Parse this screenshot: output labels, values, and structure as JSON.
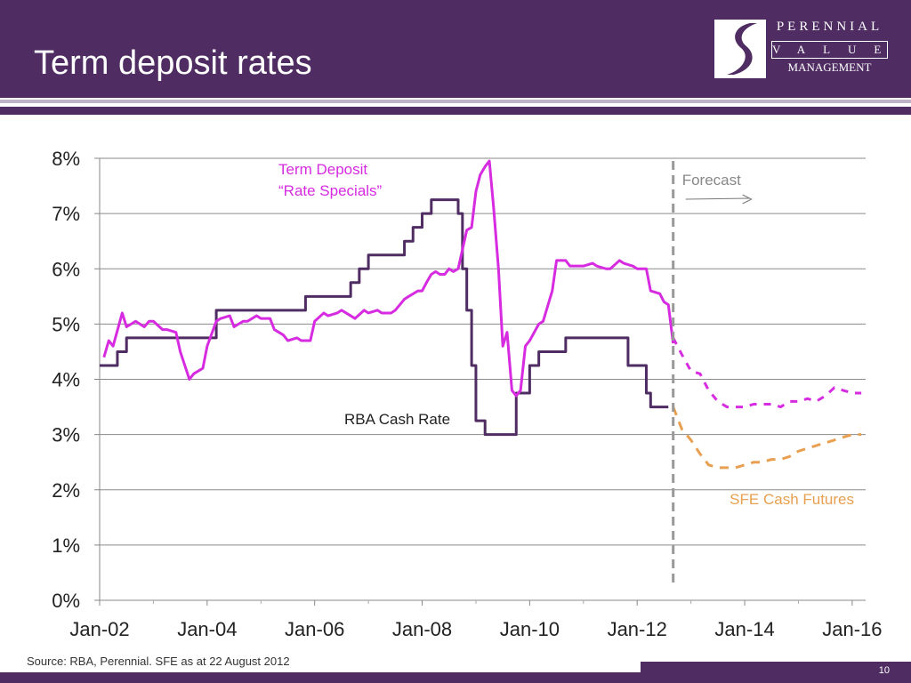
{
  "slide": {
    "title": "Term deposit rates",
    "source": "Source: RBA, Perennial.  SFE as at 22 August 2012",
    "page_number": "10",
    "logo": {
      "line1": "PERENNIAL",
      "line2": "VALUE",
      "line3": "MANAGEMENT"
    }
  },
  "colors": {
    "header": "#4f2d63",
    "term_deposit": "#d62be0",
    "rba": "#4f2d63",
    "sfe": "#e8a050",
    "forecast_line": "#999999"
  },
  "chart_data": {
    "type": "line",
    "title": "",
    "xlabel": "",
    "ylabel": "",
    "x_ticks": [
      "Jan-02",
      "Jan-04",
      "Jan-06",
      "Jan-08",
      "Jan-10",
      "Jan-12",
      "Jan-14",
      "Jan-16"
    ],
    "y_ticks": [
      "0%",
      "1%",
      "2%",
      "3%",
      "4%",
      "5%",
      "6%",
      "7%",
      "8%"
    ],
    "xlim": [
      2002.0,
      2016.25
    ],
    "ylim": [
      0,
      8
    ],
    "grid": "horizontal",
    "forecast_start": 2012.67,
    "annotations": {
      "forecast": "Forecast",
      "term_deposit_label_1": "Term Deposit",
      "term_deposit_label_2": "“Rate Specials”",
      "rba_label": "RBA Cash Rate",
      "sfe_label": "SFE Cash Futures"
    },
    "series": [
      {
        "key": "term_deposit",
        "style": "solid",
        "x": [
          2002.08,
          2002.17,
          2002.25,
          2002.42,
          2002.5,
          2002.67,
          2002.83,
          2002.92,
          2003.0,
          2003.17,
          2003.25,
          2003.42,
          2003.5,
          2003.67,
          2003.75,
          2003.92,
          2004.0,
          2004.17,
          2004.25,
          2004.42,
          2004.5,
          2004.67,
          2004.75,
          2004.92,
          2005.0,
          2005.17,
          2005.25,
          2005.42,
          2005.5,
          2005.67,
          2005.75,
          2005.92,
          2006.0,
          2006.17,
          2006.25,
          2006.42,
          2006.5,
          2006.67,
          2006.75,
          2006.92,
          2007.0,
          2007.17,
          2007.25,
          2007.42,
          2007.5,
          2007.67,
          2007.75,
          2007.92,
          2008.0,
          2008.08,
          2008.17,
          2008.25,
          2008.33,
          2008.42,
          2008.5,
          2008.58,
          2008.67,
          2008.75,
          2008.83,
          2008.92,
          2009.0,
          2009.08,
          2009.17,
          2009.25,
          2009.33,
          2009.42,
          2009.5,
          2009.58,
          2009.67,
          2009.75,
          2009.83,
          2009.92,
          2010.0,
          2010.17,
          2010.25,
          2010.42,
          2010.5,
          2010.67,
          2010.75,
          2010.92,
          2011.0,
          2011.17,
          2011.25,
          2011.42,
          2011.5,
          2011.67,
          2011.75,
          2011.92,
          2012.0,
          2012.17,
          2012.25,
          2012.42,
          2012.5,
          2012.58,
          2012.67
        ],
        "values": [
          4.4,
          4.7,
          4.6,
          5.2,
          4.95,
          5.05,
          4.95,
          5.05,
          5.05,
          4.9,
          4.9,
          4.85,
          4.5,
          4.0,
          4.1,
          4.2,
          4.6,
          5.05,
          5.1,
          5.15,
          4.95,
          5.05,
          5.05,
          5.15,
          5.1,
          5.1,
          4.9,
          4.8,
          4.7,
          4.75,
          4.7,
          4.7,
          5.05,
          5.2,
          5.15,
          5.2,
          5.25,
          5.15,
          5.1,
          5.25,
          5.2,
          5.25,
          5.2,
          5.2,
          5.25,
          5.45,
          5.5,
          5.6,
          5.6,
          5.75,
          5.9,
          5.95,
          5.9,
          5.9,
          6.0,
          5.95,
          6.0,
          6.35,
          6.7,
          6.75,
          7.4,
          7.7,
          7.85,
          7.95,
          7.1,
          6.0,
          4.6,
          4.85,
          3.8,
          3.7,
          3.8,
          4.6,
          4.7,
          5.0,
          5.05,
          5.6,
          6.15,
          6.15,
          6.05,
          6.05,
          6.05,
          6.1,
          6.05,
          6.0,
          6.0,
          6.15,
          6.1,
          6.05,
          6.0,
          6.0,
          5.6,
          5.55,
          5.4,
          5.35,
          4.65
        ]
      },
      {
        "key": "term_deposit_forecast",
        "style": "dashed",
        "x": [
          2012.67,
          2012.83,
          2013.0,
          2013.17,
          2013.33,
          2013.5,
          2013.67,
          2013.83,
          2014.0,
          2014.17,
          2014.33,
          2014.5,
          2014.67,
          2014.83,
          2015.0,
          2015.17,
          2015.33,
          2015.5,
          2015.67,
          2015.83,
          2016.0,
          2016.17
        ],
        "values": [
          4.75,
          4.45,
          4.15,
          4.1,
          3.8,
          3.6,
          3.5,
          3.5,
          3.5,
          3.55,
          3.55,
          3.55,
          3.5,
          3.6,
          3.6,
          3.65,
          3.6,
          3.7,
          3.85,
          3.8,
          3.75,
          3.75
        ]
      },
      {
        "key": "rba",
        "style": "solid",
        "x": [
          2002.0,
          2002.17,
          2002.33,
          2002.5,
          2002.67,
          2002.83,
          2003.0,
          2003.17,
          2003.33,
          2003.5,
          2003.67,
          2003.83,
          2004.0,
          2004.17,
          2004.33,
          2004.5,
          2004.67,
          2004.83,
          2005.0,
          2005.17,
          2005.33,
          2005.5,
          2005.67,
          2005.83,
          2006.0,
          2006.17,
          2006.33,
          2006.5,
          2006.67,
          2006.83,
          2007.0,
          2007.17,
          2007.33,
          2007.5,
          2007.67,
          2007.83,
          2008.0,
          2008.17,
          2008.33,
          2008.5,
          2008.67,
          2008.75,
          2008.83,
          2008.92,
          2009.0,
          2009.08,
          2009.17,
          2009.25,
          2009.42,
          2009.58,
          2009.75,
          2009.83,
          2010.0,
          2010.17,
          2010.33,
          2010.5,
          2010.67,
          2010.83,
          2011.0,
          2011.17,
          2011.33,
          2011.5,
          2011.67,
          2011.83,
          2012.0,
          2012.17,
          2012.25,
          2012.42,
          2012.58
        ],
        "values": [
          4.25,
          4.25,
          4.5,
          4.75,
          4.75,
          4.75,
          4.75,
          4.75,
          4.75,
          4.75,
          4.75,
          4.75,
          4.75,
          5.25,
          5.25,
          5.25,
          5.25,
          5.25,
          5.25,
          5.25,
          5.25,
          5.25,
          5.25,
          5.5,
          5.5,
          5.5,
          5.5,
          5.5,
          5.75,
          6.0,
          6.25,
          6.25,
          6.25,
          6.25,
          6.5,
          6.75,
          7.0,
          7.25,
          7.25,
          7.25,
          7.0,
          6.0,
          5.25,
          4.25,
          3.25,
          3.25,
          3.0,
          3.0,
          3.0,
          3.0,
          3.75,
          3.75,
          4.25,
          4.5,
          4.5,
          4.5,
          4.75,
          4.75,
          4.75,
          4.75,
          4.75,
          4.75,
          4.75,
          4.25,
          4.25,
          3.75,
          3.5,
          3.5,
          3.5
        ]
      },
      {
        "key": "sfe",
        "style": "dashed",
        "x": [
          2012.67,
          2012.83,
          2013.0,
          2013.17,
          2013.33,
          2013.5,
          2013.67,
          2013.83,
          2014.0,
          2014.17,
          2014.33,
          2014.5,
          2014.67,
          2014.83,
          2015.0,
          2015.17,
          2015.33,
          2015.5,
          2015.67,
          2015.83,
          2016.0,
          2016.17
        ],
        "values": [
          3.5,
          3.1,
          2.9,
          2.65,
          2.45,
          2.4,
          2.4,
          2.4,
          2.45,
          2.5,
          2.5,
          2.55,
          2.55,
          2.6,
          2.7,
          2.75,
          2.8,
          2.85,
          2.9,
          2.95,
          3.0,
          3.0
        ]
      }
    ]
  }
}
